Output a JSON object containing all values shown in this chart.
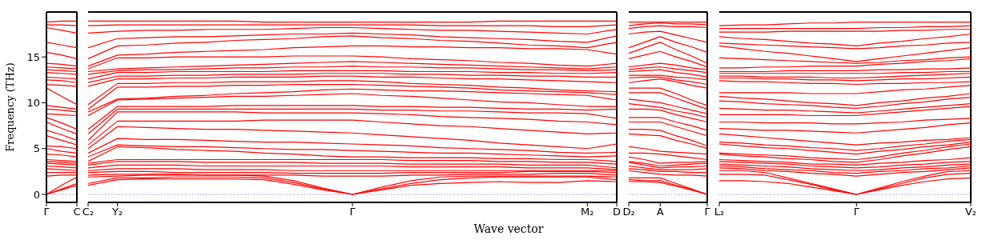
{
  "chart_data": [
    {
      "type": "line",
      "ylabel": "Frequency (THz)",
      "categories": [
        "Γ",
        null,
        "C"
      ],
      "ylim": [
        -0.87,
        19.9
      ],
      "yticks": [
        0,
        5,
        10,
        15
      ],
      "ref_lines": [
        {
          "axis": "y",
          "value": 0,
          "color": "#7777ff",
          "line_style": "dotted"
        }
      ],
      "series": [
        {
          "color": "#ff0000",
          "values": [
            0,
            0.5,
            1.0
          ]
        },
        {
          "color": "#ff0000",
          "values": [
            0,
            0.6,
            1.2
          ]
        },
        {
          "color": "#ff0000",
          "values": [
            0,
            1.0,
            1.9
          ]
        },
        {
          "color": "#ff0000",
          "values": [
            2.0,
            2.1,
            2.1
          ]
        },
        {
          "color": "#ff0000",
          "values": [
            2.4,
            2.4,
            2.4
          ]
        },
        {
          "color": "#ff0000",
          "values": [
            2.8,
            2.7,
            2.6
          ]
        },
        {
          "color": "#ff0000",
          "values": [
            3.1,
            3.0,
            2.9
          ]
        },
        {
          "color": "#ff0000",
          "values": [
            3.4,
            3.3,
            3.2
          ]
        },
        {
          "color": "#ff0000",
          "values": [
            3.6,
            3.5,
            3.4
          ]
        },
        {
          "color": "#ff0000",
          "values": [
            3.8,
            3.7,
            3.6
          ]
        },
        {
          "color": "#ff0000",
          "values": [
            4.4,
            4.3,
            4.1
          ]
        },
        {
          "color": "#ff0000",
          "values": [
            5.0,
            4.7,
            4.5
          ]
        },
        {
          "color": "#ff0000",
          "values": [
            5.3,
            5.2,
            5.0
          ]
        },
        {
          "color": "#ff0000",
          "values": [
            6.4,
            5.9,
            5.4
          ]
        },
        {
          "color": "#ff0000",
          "values": [
            7.0,
            6.5,
            5.9
          ]
        },
        {
          "color": "#ff0000",
          "values": [
            7.9,
            7.2,
            6.6
          ]
        },
        {
          "color": "#ff0000",
          "values": [
            8.4,
            7.8,
            7.1
          ]
        },
        {
          "color": "#ff0000",
          "values": [
            8.8,
            8.7,
            8.6
          ]
        },
        {
          "color": "#ff0000",
          "values": [
            9.3,
            9.2,
            9.0
          ]
        },
        {
          "color": "#ff0000",
          "values": [
            9.7,
            9.5,
            9.3
          ]
        },
        {
          "color": "#ff0000",
          "values": [
            11.6,
            10.7,
            9.8
          ]
        },
        {
          "color": "#ff0000",
          "values": [
            12.0,
            11.9,
            11.8
          ]
        },
        {
          "color": "#ff0000",
          "values": [
            12.5,
            12.4,
            12.2
          ]
        },
        {
          "color": "#ff0000",
          "values": [
            12.8,
            12.7,
            12.6
          ]
        },
        {
          "color": "#ff0000",
          "values": [
            13.3,
            13.2,
            13.1
          ]
        },
        {
          "color": "#ff0000",
          "values": [
            13.6,
            13.5,
            13.4
          ]
        },
        {
          "color": "#ff0000",
          "values": [
            13.9,
            13.8,
            13.7
          ]
        },
        {
          "color": "#ff0000",
          "values": [
            14.3,
            14.2,
            14.0
          ]
        },
        {
          "color": "#ff0000",
          "values": [
            15.5,
            15.2,
            14.8
          ]
        },
        {
          "color": "#ff0000",
          "values": [
            16.6,
            16.3,
            16.0
          ]
        },
        {
          "color": "#ff0000",
          "values": [
            18.2,
            17.9,
            17.6
          ]
        },
        {
          "color": "#ff0000",
          "values": [
            18.5,
            18.5,
            18.4
          ]
        },
        {
          "color": "#ff0000",
          "values": [
            18.8,
            18.9,
            18.9
          ]
        }
      ]
    },
    {
      "type": "line",
      "xlabel": "Wave vector",
      "tick_labels": "x",
      "categories": [
        "C₂",
        "Y₂",
        null,
        null,
        null,
        null,
        null,
        null,
        null,
        "Γ",
        null,
        null,
        null,
        null,
        null,
        null,
        null,
        "M₂",
        "D"
      ],
      "ylim": [
        -0.87,
        19.9
      ],
      "yticks": [
        0,
        5,
        10,
        15
      ],
      "ref_lines": [
        {
          "axis": "y",
          "value": 0,
          "color": "#7777ff",
          "line_style": "dotted"
        }
      ],
      "series": [
        {
          "color": "#ff0000",
          "values": [
            1.0,
            1.6,
            1.7,
            1.7,
            1.7,
            1.7,
            1.6,
            1.1,
            0.5,
            0,
            0.5,
            1.0,
            1.2,
            1.3,
            1.4,
            1.3,
            1.3,
            1.5,
            1.4
          ]
        },
        {
          "color": "#ff0000",
          "values": [
            1.2,
            1.8,
            1.8,
            1.9,
            1.9,
            1.9,
            1.8,
            1.3,
            0.6,
            0,
            0.6,
            1.2,
            1.6,
            1.8,
            1.9,
            1.9,
            1.9,
            1.9,
            1.6
          ]
        },
        {
          "color": "#ff0000",
          "values": [
            1.9,
            2.0,
            2.1,
            2.1,
            2.1,
            2.1,
            2.0,
            1.5,
            0.7,
            0,
            0.8,
            1.5,
            1.9,
            2.0,
            2.0,
            2.0,
            2.0,
            2.0,
            1.9
          ]
        },
        {
          "color": "#ff0000",
          "values": [
            2.1,
            2.2,
            2.2,
            2.2,
            2.1,
            2.1,
            2.1,
            2.1,
            2.0,
            2.0,
            2.0,
            2.1,
            2.1,
            2.2,
            2.2,
            2.2,
            2.3,
            2.3,
            2.1
          ]
        },
        {
          "color": "#ff0000",
          "values": [
            2.4,
            2.5,
            2.5,
            2.4,
            2.4,
            2.4,
            2.4,
            2.3,
            2.3,
            2.3,
            2.3,
            2.4,
            2.4,
            2.4,
            2.4,
            2.5,
            2.5,
            2.5,
            2.4
          ]
        },
        {
          "color": "#ff0000",
          "values": [
            2.6,
            2.8,
            2.8,
            2.8,
            2.7,
            2.7,
            2.7,
            2.6,
            2.6,
            2.6,
            2.6,
            2.6,
            2.6,
            2.6,
            2.6,
            2.6,
            2.6,
            2.6,
            2.6
          ]
        },
        {
          "color": "#ff0000",
          "values": [
            2.9,
            3.2,
            3.2,
            3.2,
            3.1,
            3.1,
            3.1,
            3.1,
            3.1,
            3.1,
            3.1,
            3.0,
            3.0,
            3.0,
            3.0,
            2.9,
            2.9,
            2.9,
            2.7
          ]
        },
        {
          "color": "#ff0000",
          "values": [
            3.2,
            3.6,
            3.6,
            3.6,
            3.5,
            3.5,
            3.5,
            3.5,
            3.4,
            3.4,
            3.4,
            3.3,
            3.3,
            3.3,
            3.3,
            3.2,
            3.2,
            3.2,
            2.9
          ]
        },
        {
          "color": "#ff0000",
          "values": [
            3.4,
            3.8,
            3.8,
            3.8,
            3.8,
            3.8,
            3.8,
            3.8,
            3.8,
            3.8,
            3.8,
            3.7,
            3.7,
            3.7,
            3.6,
            3.6,
            3.5,
            3.5,
            3.3
          ]
        },
        {
          "color": "#ff0000",
          "values": [
            3.6,
            5.2,
            5.1,
            4.9,
            4.8,
            4.7,
            4.5,
            4.4,
            4.2,
            4.1,
            4.1,
            4.0,
            4.0,
            4.0,
            3.9,
            3.9,
            3.8,
            3.8,
            3.6
          ]
        },
        {
          "color": "#ff0000",
          "values": [
            4.1,
            5.4,
            5.3,
            5.2,
            5.2,
            5.1,
            5.0,
            4.9,
            4.9,
            4.8,
            4.7,
            4.6,
            4.5,
            4.5,
            4.4,
            4.3,
            4.2,
            4.1,
            4.2
          ]
        },
        {
          "color": "#ff0000",
          "values": [
            4.5,
            6.1,
            6.0,
            6.0,
            5.9,
            5.8,
            5.7,
            5.7,
            5.6,
            5.5,
            5.4,
            5.3,
            5.1,
            5.0,
            4.9,
            4.8,
            4.6,
            4.5,
            4.6
          ]
        },
        {
          "color": "#ff0000",
          "values": [
            5.0,
            7.4,
            7.3,
            7.2,
            7.1,
            7.1,
            7.0,
            6.9,
            6.8,
            6.7,
            6.5,
            6.3,
            6.1,
            5.9,
            5.6,
            5.4,
            5.2,
            5.0,
            5.5
          ]
        },
        {
          "color": "#ff0000",
          "values": [
            5.4,
            8.0,
            8.0,
            8.0,
            8.0,
            8.0,
            8.1,
            8.1,
            8.1,
            8.1,
            7.9,
            7.7,
            7.5,
            7.4,
            7.2,
            7.0,
            6.8,
            6.6,
            6.7
          ]
        },
        {
          "color": "#ff0000",
          "values": [
            5.9,
            9.0,
            9.0,
            9.0,
            9.0,
            9.0,
            8.9,
            8.9,
            8.9,
            8.9,
            8.8,
            8.7,
            8.5,
            8.4,
            8.3,
            8.2,
            8.0,
            7.9,
            7.6
          ]
        },
        {
          "color": "#ff0000",
          "values": [
            6.6,
            9.3,
            9.3,
            9.3,
            9.3,
            9.3,
            9.3,
            9.3,
            9.3,
            9.3,
            9.2,
            9.2,
            9.1,
            9.1,
            9.0,
            8.9,
            8.9,
            8.8,
            8.3
          ]
        },
        {
          "color": "#ff0000",
          "values": [
            7.1,
            9.6,
            9.6,
            9.6,
            9.6,
            9.7,
            9.7,
            9.7,
            9.7,
            9.7,
            9.6,
            9.6,
            9.5,
            9.5,
            9.4,
            9.3,
            9.3,
            9.2,
            9.3
          ]
        },
        {
          "color": "#ff0000",
          "values": [
            8.6,
            10.3,
            10.4,
            10.5,
            10.6,
            10.7,
            10.7,
            10.8,
            10.9,
            11.0,
            10.8,
            10.7,
            10.5,
            10.3,
            10.1,
            10.0,
            9.8,
            9.6,
            9.6
          ]
        },
        {
          "color": "#ff0000",
          "values": [
            9.0,
            10.4,
            10.5,
            10.7,
            10.8,
            11.0,
            11.1,
            11.2,
            11.4,
            11.5,
            11.4,
            11.3,
            11.3,
            11.2,
            11.1,
            11.0,
            10.9,
            10.8,
            10.3
          ]
        },
        {
          "color": "#ff0000",
          "values": [
            9.3,
            11.7,
            11.7,
            11.8,
            11.8,
            11.9,
            11.9,
            12.0,
            12.0,
            12.0,
            11.9,
            11.8,
            11.7,
            11.6,
            11.4,
            11.3,
            11.2,
            11.1,
            10.9
          ]
        },
        {
          "color": "#ff0000",
          "values": [
            9.8,
            12.1,
            12.1,
            12.2,
            12.2,
            12.3,
            12.3,
            12.3,
            12.4,
            12.4,
            12.3,
            12.1,
            12.0,
            11.9,
            11.7,
            11.6,
            11.4,
            11.3,
            11.2
          ]
        },
        {
          "color": "#ff0000",
          "values": [
            11.8,
            12.6,
            12.6,
            12.7,
            12.7,
            12.8,
            12.8,
            12.8,
            12.9,
            12.9,
            12.8,
            12.8,
            12.7,
            12.6,
            12.6,
            12.5,
            12.4,
            12.3,
            12.2
          ]
        },
        {
          "color": "#ff0000",
          "values": [
            12.2,
            12.9,
            12.9,
            13.0,
            13.0,
            13.1,
            13.1,
            13.1,
            13.2,
            13.2,
            13.2,
            13.1,
            13.1,
            13.0,
            13.0,
            12.9,
            12.9,
            12.8,
            12.8
          ]
        },
        {
          "color": "#ff0000",
          "values": [
            12.6,
            13.3,
            13.3,
            13.4,
            13.4,
            13.4,
            13.4,
            13.5,
            13.5,
            13.5,
            13.5,
            13.4,
            13.4,
            13.4,
            13.3,
            13.3,
            13.2,
            13.2,
            13.3
          ]
        },
        {
          "color": "#ff0000",
          "values": [
            13.1,
            13.5,
            13.6,
            13.6,
            13.7,
            13.8,
            13.8,
            13.9,
            13.9,
            14.0,
            13.9,
            13.9,
            13.8,
            13.8,
            13.7,
            13.6,
            13.6,
            13.5,
            13.6
          ]
        },
        {
          "color": "#ff0000",
          "values": [
            13.4,
            13.7,
            13.8,
            13.9,
            14.0,
            14.1,
            14.2,
            14.3,
            14.4,
            14.5,
            14.4,
            14.3,
            14.2,
            14.1,
            14.0,
            13.9,
            13.8,
            13.7,
            13.9
          ]
        },
        {
          "color": "#ff0000",
          "values": [
            13.7,
            14.9,
            14.9,
            15.0,
            15.0,
            15.0,
            15.0,
            15.1,
            15.1,
            15.1,
            15.0,
            14.8,
            14.7,
            14.6,
            14.4,
            14.3,
            14.1,
            14.0,
            14.3
          ]
        },
        {
          "color": "#ff0000",
          "values": [
            14.0,
            15.2,
            15.3,
            15.5,
            15.6,
            15.7,
            15.8,
            16.0,
            16.1,
            16.2,
            16.2,
            16.1,
            16.1,
            16.0,
            16.0,
            15.9,
            15.9,
            15.8,
            15.3
          ]
        },
        {
          "color": "#ff0000",
          "values": [
            14.8,
            16.2,
            16.3,
            16.5,
            16.6,
            16.8,
            16.9,
            17.0,
            17.2,
            17.3,
            17.1,
            17.0,
            16.8,
            16.7,
            16.5,
            16.3,
            16.2,
            16.0,
            16.6
          ]
        },
        {
          "color": "#ff0000",
          "values": [
            16.0,
            17.0,
            17.1,
            17.2,
            17.2,
            17.3,
            17.4,
            17.5,
            17.5,
            17.6,
            17.5,
            17.4,
            17.2,
            17.1,
            17.0,
            16.9,
            16.7,
            16.6,
            17.3
          ]
        },
        {
          "color": "#ff0000",
          "values": [
            17.6,
            17.8,
            17.9,
            17.9,
            18.0,
            18.0,
            18.0,
            18.1,
            18.2,
            18.2,
            18.1,
            18.0,
            17.9,
            17.9,
            17.8,
            17.7,
            17.6,
            17.5,
            18.0
          ]
        },
        {
          "color": "#ff0000",
          "values": [
            18.4,
            18.5,
            18.5,
            18.5,
            18.5,
            18.5,
            18.5,
            18.5,
            18.5,
            18.5,
            18.5,
            18.5,
            18.4,
            18.4,
            18.4,
            18.4,
            18.3,
            18.3,
            18.5
          ]
        },
        {
          "color": "#ff0000",
          "values": [
            18.9,
            18.9,
            18.9,
            18.9,
            18.9,
            18.9,
            18.8,
            18.8,
            18.8,
            18.8,
            18.8,
            18.8,
            18.8,
            18.8,
            18.9,
            18.9,
            18.9,
            18.9,
            18.9
          ]
        }
      ]
    },
    {
      "type": "line",
      "tick_labels": "x",
      "categories": [
        "D₂",
        null,
        "A",
        null,
        null,
        "Γ"
      ],
      "ylim": [
        -0.87,
        19.9
      ],
      "yticks": [
        0,
        5,
        10,
        15
      ],
      "ref_lines": [
        {
          "axis": "y",
          "value": 0,
          "color": "#7777ff",
          "line_style": "dotted"
        }
      ],
      "series": [
        {
          "color": "#ff0000",
          "values": [
            1.4,
            1.4,
            1.3,
            0.9,
            0.5,
            0
          ]
        },
        {
          "color": "#ff0000",
          "values": [
            1.6,
            1.5,
            1.5,
            1.0,
            0.5,
            0
          ]
        },
        {
          "color": "#ff0000",
          "values": [
            1.8,
            1.8,
            1.8,
            1.2,
            0.6,
            0
          ]
        },
        {
          "color": "#ff0000",
          "values": [
            2.6,
            2.4,
            2.2,
            2.1,
            2.1,
            2.0
          ]
        },
        {
          "color": "#ff0000",
          "values": [
            2.8,
            2.7,
            2.5,
            2.5,
            2.4,
            2.4
          ]
        },
        {
          "color": "#ff0000",
          "values": [
            3.1,
            2.9,
            2.7,
            2.7,
            2.7,
            2.8
          ]
        },
        {
          "color": "#ff0000",
          "values": [
            3.5,
            3.2,
            2.9,
            3.0,
            3.0,
            3.1
          ]
        },
        {
          "color": "#ff0000",
          "values": [
            3.6,
            3.4,
            3.1,
            3.2,
            3.3,
            3.4
          ]
        },
        {
          "color": "#ff0000",
          "values": [
            4.1,
            3.8,
            3.4,
            3.5,
            3.5,
            3.6
          ]
        },
        {
          "color": "#ff0000",
          "values": [
            4.5,
            4.5,
            4.4,
            4.2,
            4.0,
            3.8
          ]
        },
        {
          "color": "#ff0000",
          "values": [
            5.2,
            5.0,
            4.7,
            4.6,
            4.5,
            4.4
          ]
        },
        {
          "color": "#ff0000",
          "values": [
            6.6,
            6.5,
            6.4,
            5.9,
            5.5,
            5.0
          ]
        },
        {
          "color": "#ff0000",
          "values": [
            7.1,
            7.1,
            7.0,
            6.4,
            5.9,
            5.3
          ]
        },
        {
          "color": "#ff0000",
          "values": [
            7.9,
            7.9,
            7.9,
            7.4,
            6.9,
            6.4
          ]
        },
        {
          "color": "#ff0000",
          "values": [
            8.4,
            8.4,
            8.4,
            7.9,
            7.5,
            7.0
          ]
        },
        {
          "color": "#ff0000",
          "values": [
            9.3,
            9.3,
            9.2,
            8.7,
            8.3,
            7.9
          ]
        },
        {
          "color": "#ff0000",
          "values": [
            9.9,
            9.7,
            9.5,
            9.1,
            8.8,
            8.4
          ]
        },
        {
          "color": "#ff0000",
          "values": [
            10.4,
            10.2,
            10.0,
            9.6,
            9.2,
            8.8
          ]
        },
        {
          "color": "#ff0000",
          "values": [
            11.1,
            11.1,
            11.1,
            10.5,
            9.9,
            9.3
          ]
        },
        {
          "color": "#ff0000",
          "values": [
            11.6,
            11.6,
            11.6,
            11.0,
            10.3,
            9.7
          ]
        },
        {
          "color": "#ff0000",
          "values": [
            12.2,
            12.4,
            12.6,
            12.3,
            11.9,
            11.6
          ]
        },
        {
          "color": "#ff0000",
          "values": [
            12.7,
            12.8,
            12.8,
            12.5,
            12.3,
            12.0
          ]
        },
        {
          "color": "#ff0000",
          "values": [
            13.0,
            13.0,
            13.0,
            12.8,
            12.7,
            12.5
          ]
        },
        {
          "color": "#ff0000",
          "values": [
            13.4,
            13.5,
            13.6,
            13.3,
            13.1,
            12.8
          ]
        },
        {
          "color": "#ff0000",
          "values": [
            13.6,
            13.8,
            13.9,
            13.7,
            13.5,
            13.3
          ]
        },
        {
          "color": "#ff0000",
          "values": [
            13.9,
            14.1,
            14.3,
            14.1,
            13.8,
            13.6
          ]
        },
        {
          "color": "#ff0000",
          "values": [
            14.8,
            15.2,
            15.6,
            15.0,
            14.5,
            13.9
          ]
        },
        {
          "color": "#ff0000",
          "values": [
            15.4,
            16.0,
            16.6,
            15.8,
            15.1,
            14.3
          ]
        },
        {
          "color": "#ff0000",
          "values": [
            16.0,
            16.6,
            17.2,
            16.6,
            16.1,
            15.5
          ]
        },
        {
          "color": "#ff0000",
          "values": [
            17.5,
            17.7,
            17.8,
            17.4,
            17.0,
            16.6
          ]
        },
        {
          "color": "#ff0000",
          "values": [
            18.1,
            18.3,
            18.4,
            18.3,
            18.3,
            18.2
          ]
        },
        {
          "color": "#ff0000",
          "values": [
            18.4,
            18.6,
            18.7,
            18.6,
            18.6,
            18.5
          ]
        },
        {
          "color": "#ff0000",
          "values": [
            18.8,
            18.8,
            18.8,
            18.8,
            18.8,
            18.8
          ]
        }
      ]
    },
    {
      "type": "line",
      "tick_labels": "x",
      "categories": [
        "L₂",
        null,
        null,
        null,
        null,
        null,
        "Γ",
        null,
        null,
        null,
        null,
        "V₂"
      ],
      "ylim": [
        -0.87,
        19.9
      ],
      "yticks": [
        0,
        5,
        10,
        15
      ],
      "ref_lines": [
        {
          "axis": "y",
          "value": 0,
          "color": "#7777ff",
          "line_style": "dotted"
        }
      ],
      "series": [
        {
          "color": "#ff0000",
          "values": [
            1.5,
            1.5,
            1.4,
            1.2,
            0.8,
            0.4,
            0,
            0.5,
            1.0,
            1.4,
            1.7,
            1.8
          ]
        },
        {
          "color": "#ff0000",
          "values": [
            2.2,
            2.2,
            2.1,
            1.6,
            1.1,
            0.5,
            0,
            0.6,
            1.2,
            1.8,
            2.2,
            2.3
          ]
        },
        {
          "color": "#ff0000",
          "values": [
            2.6,
            2.6,
            2.4,
            1.8,
            1.2,
            0.6,
            0,
            0.7,
            1.4,
            2.0,
            2.5,
            2.6
          ]
        },
        {
          "color": "#ff0000",
          "values": [
            2.9,
            2.8,
            2.6,
            2.5,
            2.3,
            2.2,
            2.0,
            2.2,
            2.4,
            2.5,
            2.7,
            2.9
          ]
        },
        {
          "color": "#ff0000",
          "values": [
            3.1,
            3.0,
            2.8,
            2.7,
            2.6,
            2.4,
            2.3,
            2.5,
            2.6,
            2.8,
            2.9,
            3.1
          ]
        },
        {
          "color": "#ff0000",
          "values": [
            3.3,
            3.2,
            3.1,
            3.0,
            2.8,
            2.7,
            2.6,
            2.7,
            2.9,
            3.0,
            3.2,
            3.3
          ]
        },
        {
          "color": "#ff0000",
          "values": [
            3.6,
            3.5,
            3.4,
            3.3,
            3.1,
            3.0,
            2.9,
            3.0,
            3.2,
            3.3,
            3.5,
            3.6
          ]
        },
        {
          "color": "#ff0000",
          "values": [
            3.8,
            3.7,
            3.6,
            3.5,
            3.3,
            3.3,
            3.2,
            3.4,
            3.5,
            3.7,
            3.8,
            4.0
          ]
        },
        {
          "color": "#ff0000",
          "values": [
            4.4,
            4.2,
            4.1,
            3.9,
            3.8,
            3.6,
            3.5,
            3.8,
            4.2,
            4.5,
            4.9,
            5.2
          ]
        },
        {
          "color": "#ff0000",
          "values": [
            4.5,
            4.4,
            4.3,
            4.2,
            4.0,
            3.9,
            3.8,
            4.1,
            4.5,
            4.8,
            5.2,
            5.5
          ]
        },
        {
          "color": "#ff0000",
          "values": [
            5.5,
            5.3,
            5.1,
            5.0,
            4.8,
            4.6,
            4.4,
            4.7,
            4.9,
            5.2,
            5.4,
            5.7
          ]
        },
        {
          "color": "#ff0000",
          "values": [
            5.7,
            5.6,
            5.4,
            5.3,
            5.1,
            5.0,
            4.8,
            5.0,
            5.3,
            5.5,
            5.8,
            6.0
          ]
        },
        {
          "color": "#ff0000",
          "values": [
            6.6,
            6.4,
            6.2,
            6.0,
            5.8,
            5.6,
            5.4,
            5.6,
            5.7,
            5.9,
            6.0,
            6.2
          ]
        },
        {
          "color": "#ff0000",
          "values": [
            7.2,
            7.1,
            7.0,
            7.0,
            6.9,
            6.8,
            6.7,
            6.9,
            7.1,
            7.3,
            7.6,
            7.8
          ]
        },
        {
          "color": "#ff0000",
          "values": [
            7.9,
            7.9,
            7.8,
            7.8,
            7.8,
            7.7,
            7.7,
            7.8,
            7.9,
            8.1,
            8.2,
            8.3
          ]
        },
        {
          "color": "#ff0000",
          "values": [
            8.7,
            8.7,
            8.7,
            8.7,
            8.6,
            8.6,
            8.6,
            8.8,
            9.0,
            9.2,
            9.4,
            9.6
          ]
        },
        {
          "color": "#ff0000",
          "values": [
            9.4,
            9.3,
            9.2,
            9.2,
            9.1,
            9.0,
            8.9,
            9.1,
            9.3,
            9.5,
            9.7,
            9.9
          ]
        },
        {
          "color": "#ff0000",
          "values": [
            10.2,
            10.1,
            9.9,
            9.8,
            9.7,
            9.5,
            9.4,
            9.6,
            9.9,
            10.1,
            10.4,
            10.6
          ]
        },
        {
          "color": "#ff0000",
          "values": [
            10.7,
            10.5,
            10.4,
            10.2,
            10.0,
            9.9,
            9.7,
            10.0,
            10.2,
            10.5,
            10.7,
            11.0
          ]
        },
        {
          "color": "#ff0000",
          "values": [
            11.1,
            11.1,
            11.1,
            11.1,
            11.0,
            11.0,
            11.0,
            11.2,
            11.4,
            11.5,
            11.7,
            11.9
          ]
        },
        {
          "color": "#ff0000",
          "values": [
            12.4,
            12.3,
            12.3,
            12.2,
            12.1,
            12.1,
            12.0,
            12.1,
            12.1,
            12.2,
            12.2,
            12.3
          ]
        },
        {
          "color": "#ff0000",
          "values": [
            12.7,
            12.7,
            12.6,
            12.6,
            12.5,
            12.5,
            12.4,
            12.5,
            12.6,
            12.6,
            12.7,
            12.8
          ]
        },
        {
          "color": "#ff0000",
          "values": [
            12.9,
            12.9,
            12.8,
            12.8,
            12.8,
            12.7,
            12.7,
            12.8,
            12.9,
            13.0,
            13.1,
            13.2
          ]
        },
        {
          "color": "#ff0000",
          "values": [
            13.2,
            13.2,
            13.2,
            13.2,
            13.2,
            13.2,
            13.2,
            13.2,
            13.3,
            13.3,
            13.4,
            13.4
          ]
        },
        {
          "color": "#ff0000",
          "values": [
            13.4,
            13.4,
            13.4,
            13.5,
            13.5,
            13.5,
            13.5,
            13.6,
            13.6,
            13.7,
            13.7,
            13.8
          ]
        },
        {
          "color": "#ff0000",
          "values": [
            13.8,
            13.8,
            13.9,
            13.9,
            14.0,
            14.0,
            14.0,
            14.2,
            14.3,
            14.5,
            14.6,
            14.8
          ]
        },
        {
          "color": "#ff0000",
          "values": [
            14.9,
            14.8,
            14.7,
            14.6,
            14.5,
            14.4,
            14.3,
            14.4,
            14.6,
            14.7,
            14.9,
            15.0
          ]
        },
        {
          "color": "#ff0000",
          "values": [
            16.2,
            15.9,
            15.6,
            15.4,
            15.1,
            14.8,
            14.5,
            14.8,
            15.1,
            15.4,
            15.7,
            16.0
          ]
        },
        {
          "color": "#ff0000",
          "values": [
            16.5,
            16.4,
            16.3,
            16.2,
            16.1,
            16.0,
            15.9,
            16.0,
            16.2,
            16.3,
            16.5,
            16.6
          ]
        },
        {
          "color": "#ff0000",
          "values": [
            17.2,
            17.0,
            16.9,
            16.7,
            16.5,
            16.4,
            16.2,
            16.5,
            16.7,
            17.0,
            17.2,
            17.5
          ]
        },
        {
          "color": "#ff0000",
          "values": [
            17.7,
            17.7,
            17.7,
            17.8,
            17.8,
            17.8,
            17.8,
            17.8,
            17.9,
            17.9,
            18.0,
            18.0
          ]
        },
        {
          "color": "#ff0000",
          "values": [
            18.1,
            18.1,
            18.1,
            18.1,
            18.1,
            18.1,
            18.1,
            18.2,
            18.2,
            18.3,
            18.3,
            18.4
          ]
        },
        {
          "color": "#ff0000",
          "values": [
            18.4,
            18.5,
            18.5,
            18.6,
            18.7,
            18.7,
            18.8,
            18.8,
            18.8,
            18.8,
            18.8,
            18.8
          ]
        }
      ]
    }
  ]
}
